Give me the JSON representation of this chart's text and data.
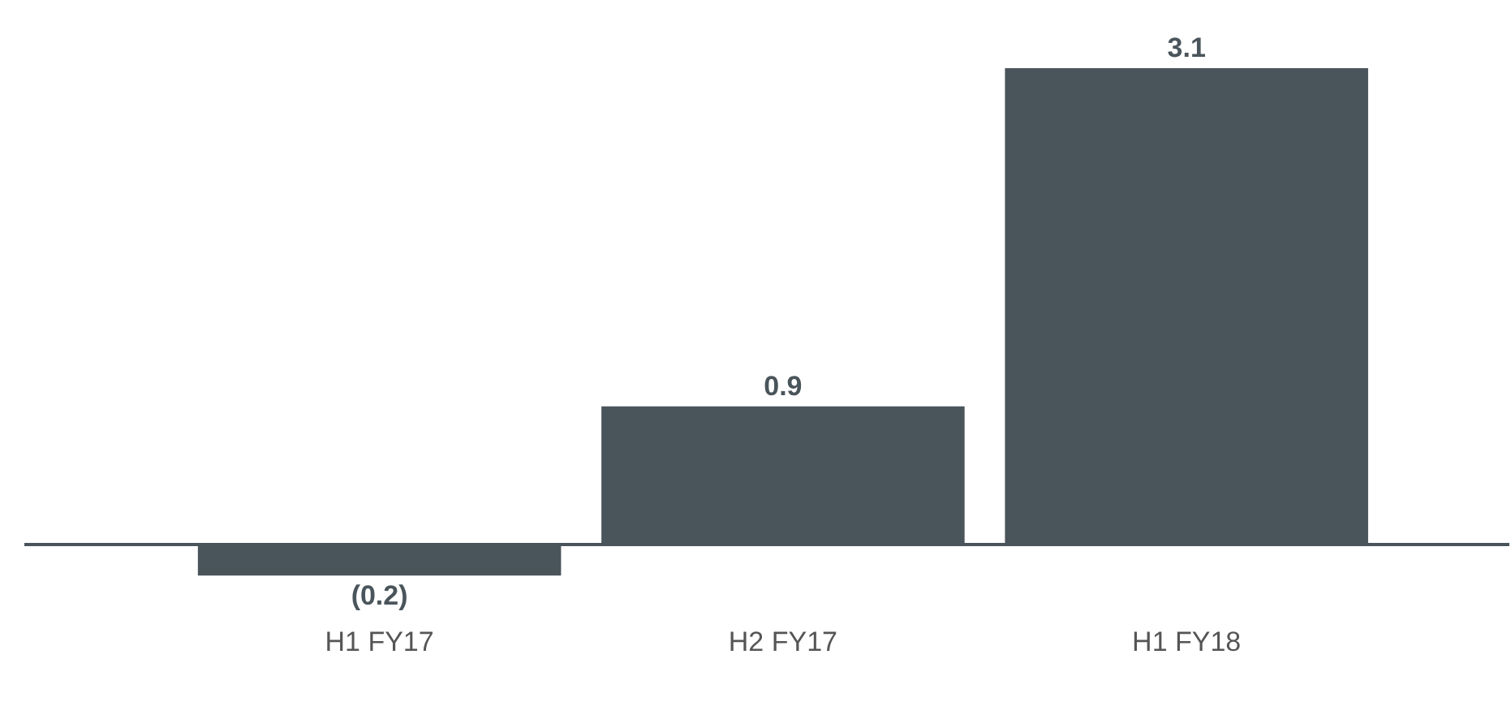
{
  "chart_data": {
    "type": "bar",
    "categories": [
      "H1 FY17",
      "H2 FY17",
      "H1 FY18"
    ],
    "values": [
      -0.2,
      0.9,
      3.1
    ],
    "value_labels": [
      "(0.2)",
      "0.9",
      "3.1"
    ],
    "color": "#4a555b"
  }
}
